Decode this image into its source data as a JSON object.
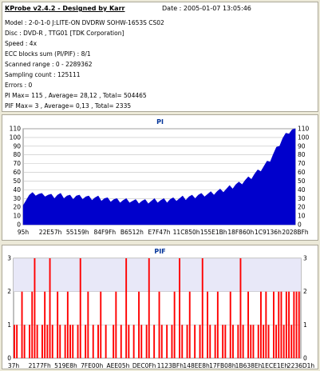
{
  "header": {
    "title": "KProbe v2.4.2 - Designed by Karr",
    "date": "Date : 2005-01-07 13:05:46",
    "lines": [
      "Model : 2-0-1-0 J:LITE-ON DVDRW SOHW-1653S CS02",
      "Disc : DVD-R , TTG01 [TDK Corporation]",
      "Speed : 4x",
      "ECC blocks sum (PI/PIF) : 8/1",
      "Scanned range : 0 - 2289362",
      "Sampling count : 125111",
      "Errors : 0",
      "PI Max= 115 , Average= 28,12 , Total= 504465",
      "PIF Max= 3 , Average= 0,13 , Total= 2335"
    ]
  },
  "colors": {
    "pi_fill": "#0000cc",
    "pif_fill": "#ff0000",
    "grid": "#c0c0c0",
    "plot_bg": "#ffffff",
    "pif_band": "#e8e8f8",
    "title": "#003399"
  },
  "chart_data": [
    {
      "type": "area",
      "title": "PI",
      "ylim": [
        0,
        110
      ],
      "yticks": [
        0,
        10,
        20,
        30,
        40,
        50,
        60,
        70,
        80,
        90,
        100,
        110
      ],
      "xticks": [
        "95h",
        "22E57h",
        "55159h",
        "84F9Fh",
        "B6512h",
        "E7F47h",
        "11C850h",
        "155E1Bh",
        "18F860h",
        "1C9136h",
        "2028BFh"
      ],
      "series": [
        {
          "values": [
            22,
            30,
            33,
            34,
            35,
            34,
            33,
            34,
            33,
            32,
            32,
            33,
            33,
            32,
            32,
            31,
            31,
            32,
            31,
            31,
            31,
            30,
            30,
            30,
            30,
            29,
            29,
            28,
            28,
            28,
            27,
            27,
            27,
            27,
            27,
            26,
            26,
            26,
            26,
            26,
            26,
            26,
            27,
            27,
            27,
            27,
            27,
            28,
            28,
            29,
            29,
            30,
            30,
            31,
            31,
            32,
            33,
            33,
            34,
            34,
            35,
            36,
            37,
            38,
            39,
            40,
            42,
            43,
            45,
            46,
            48,
            50,
            52,
            54,
            57,
            60,
            63,
            66,
            70,
            74,
            80,
            86,
            92,
            98,
            102,
            106,
            108,
            110
          ]
        }
      ]
    },
    {
      "type": "bar",
      "title": "PIF",
      "ylim": [
        0,
        3
      ],
      "yticks": [
        0,
        1,
        2,
        3
      ],
      "xticks": [
        "37h",
        "2177Fh",
        "519E8h",
        "7FE00h",
        "AEE05h",
        "DEC0Fh",
        "1123BFh",
        "148EE8h",
        "17FB08h",
        "1B638Eh",
        "1ECE1Eh",
        "2236D1h"
      ],
      "series": [
        {
          "values": [
            1,
            1,
            0,
            2,
            1,
            0,
            1,
            2,
            3,
            1,
            0,
            1,
            2,
            1,
            3,
            1,
            0,
            2,
            1,
            0,
            1,
            2,
            1,
            1,
            0,
            1,
            3,
            0,
            1,
            2,
            0,
            1,
            0,
            1,
            2,
            0,
            1,
            0,
            0,
            1,
            2,
            0,
            1,
            0,
            3,
            1,
            0,
            1,
            0,
            2,
            1,
            0,
            1,
            3,
            0,
            1,
            0,
            2,
            1,
            0,
            1,
            0,
            1,
            2,
            0,
            3,
            1,
            0,
            1,
            2,
            0,
            1,
            0,
            1,
            3,
            0,
            2,
            1,
            0,
            1,
            2,
            0,
            1,
            1,
            0,
            2,
            1,
            0,
            1,
            3,
            1,
            0,
            2,
            1,
            1,
            0,
            1,
            2,
            1,
            2,
            1,
            0,
            2,
            1,
            2,
            2,
            1,
            2,
            2,
            1,
            2,
            2,
            2
          ]
        }
      ]
    }
  ]
}
